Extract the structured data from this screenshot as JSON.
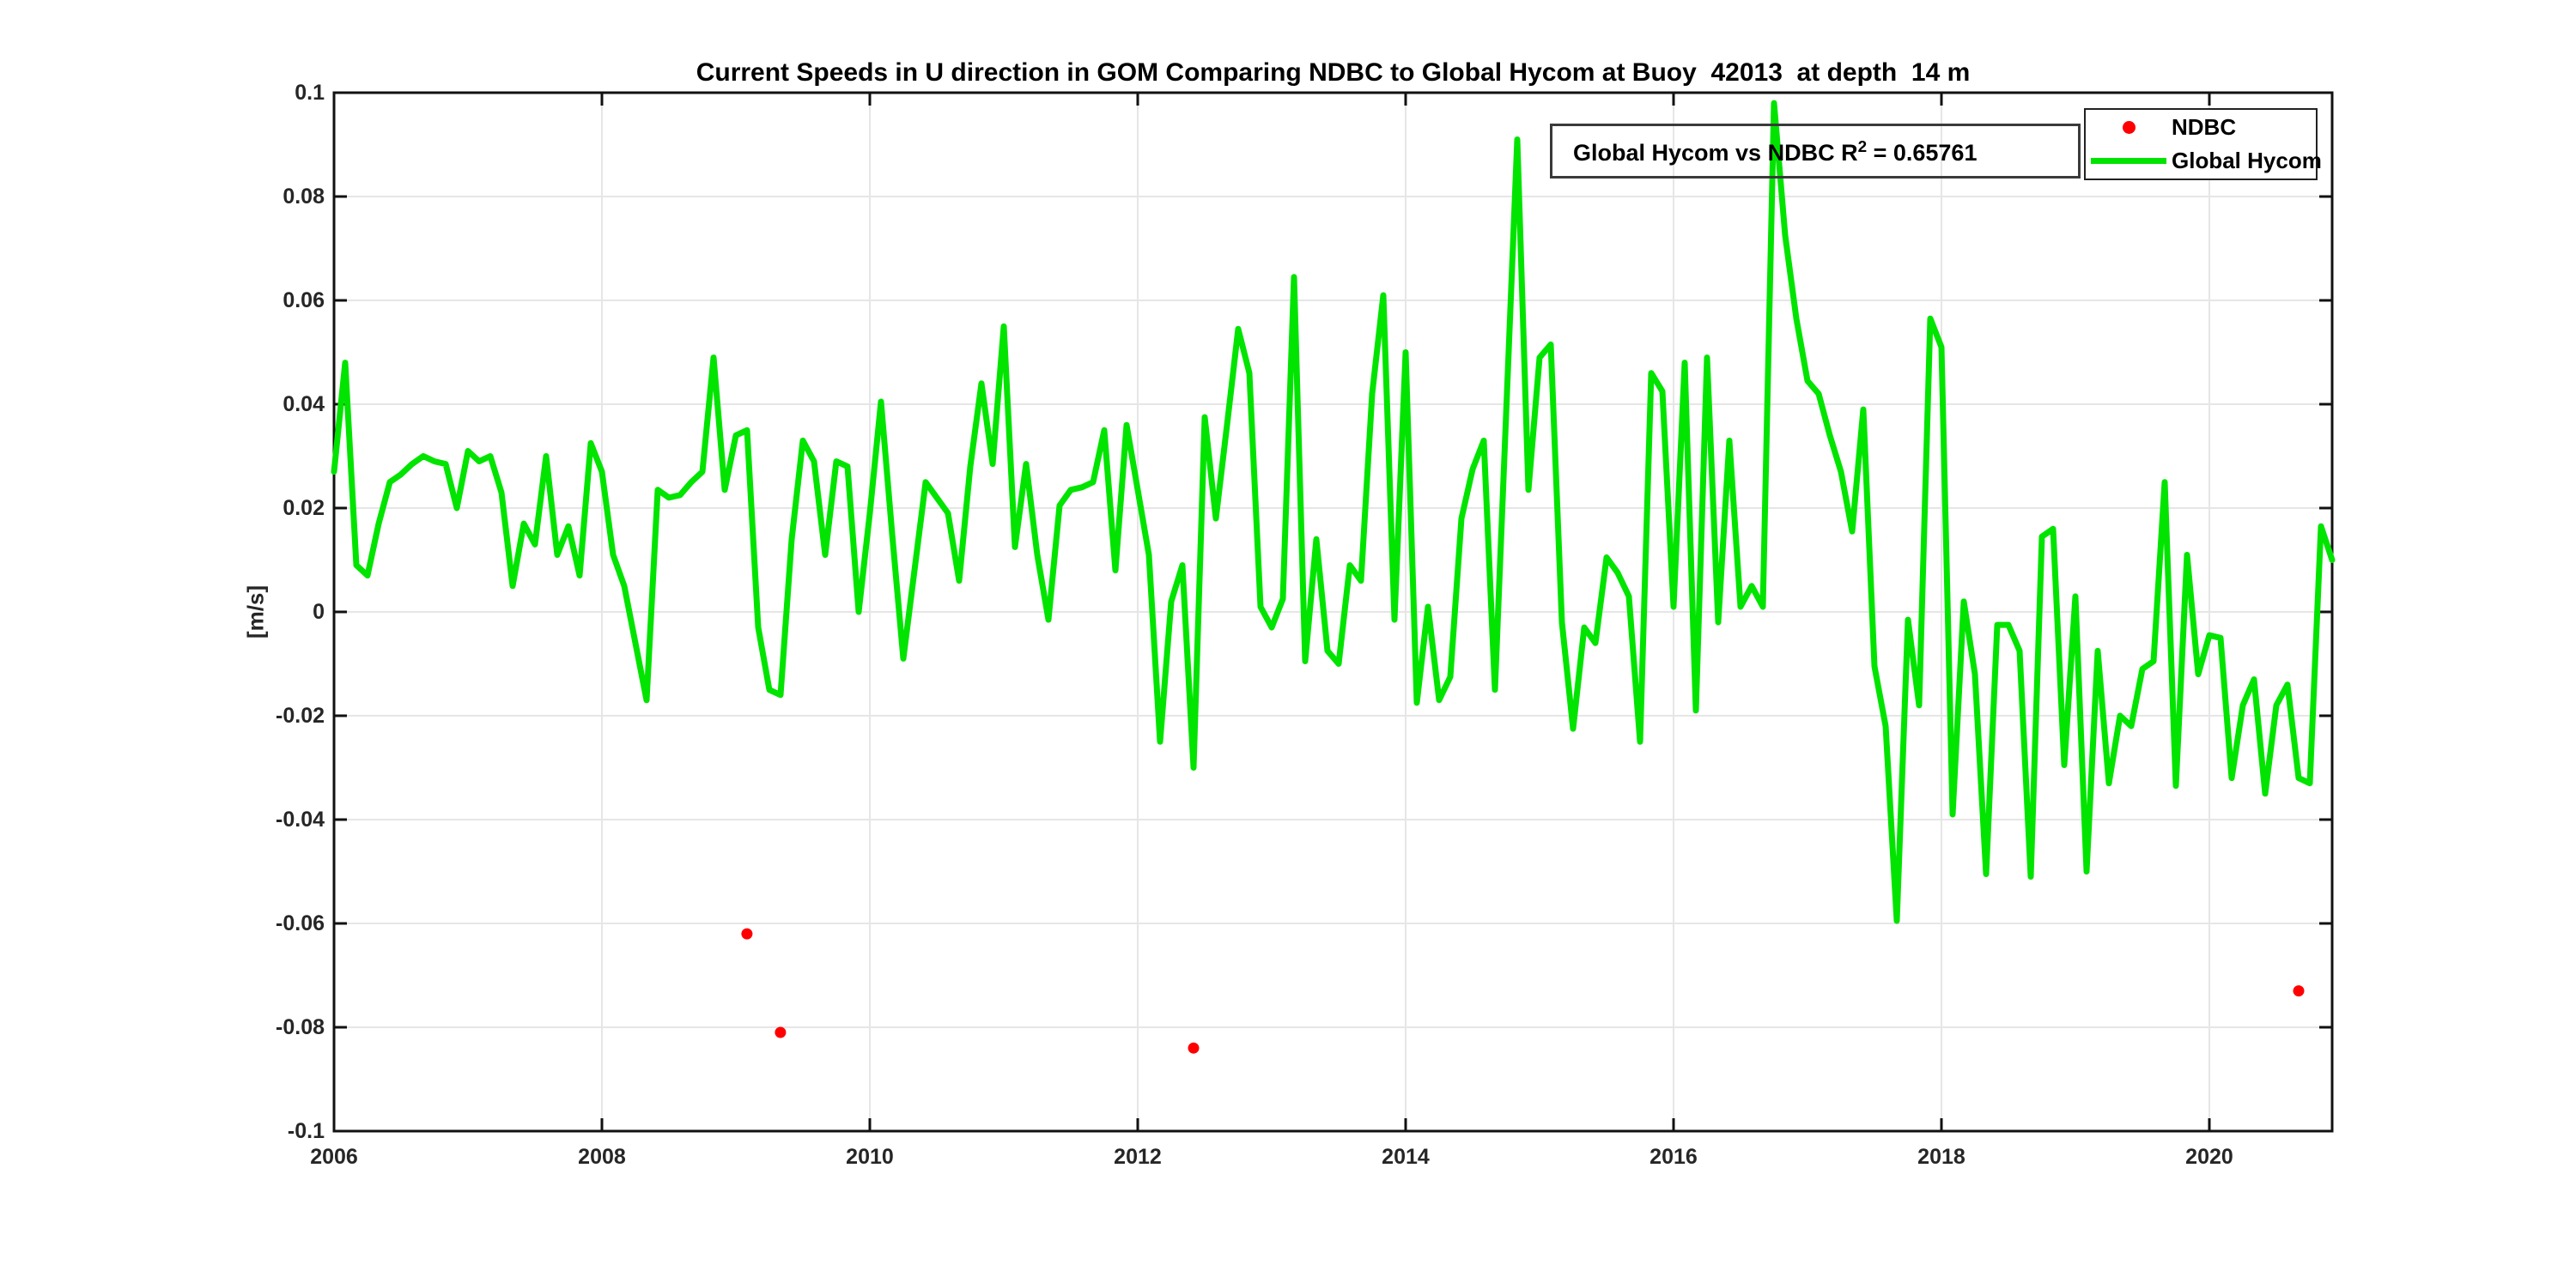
{
  "title": "Current Speeds in U direction in GOM Comparing NDBC to Global Hycom at Buoy  42013  at depth  14 m",
  "annotation": {
    "prefix": "Global Hycom vs NDBC R",
    "sup": "2",
    "suffix": " = 0.65761"
  },
  "legend": {
    "items": [
      {
        "label": "NDBC",
        "marker": "dot",
        "color": "#ff0000"
      },
      {
        "label": "Global Hycom",
        "marker": "line",
        "color": "#00e400"
      }
    ]
  },
  "colors": {
    "hycom_line": "#00e400",
    "ndbc_marker": "#ff0000",
    "grid": "#e6e6e6",
    "axis": "#111111",
    "tick_text": "#262626"
  },
  "chart_data": {
    "type": "line",
    "title": "Current Speeds in U direction in GOM Comparing NDBC to Global Hycom at Buoy  42013  at depth  14 m",
    "xlabel": "",
    "ylabel": "[m/s]",
    "xlim": [
      2006,
      2020.9167
    ],
    "ylim": [
      -0.1,
      0.1
    ],
    "grid": true,
    "legend_position": "top-right",
    "x_ticks": {
      "values": [
        2006,
        2008,
        2010,
        2012,
        2014,
        2016,
        2018,
        2020
      ],
      "labels": [
        "2006",
        "2008",
        "2010",
        "2012",
        "2014",
        "2016",
        "2018",
        "2020"
      ]
    },
    "y_ticks": {
      "values": [
        0.1,
        0.08,
        0.06,
        0.04,
        0.02,
        0,
        -0.02,
        -0.04,
        -0.06,
        -0.08,
        -0.1
      ],
      "labels": [
        "0.1",
        "0.08",
        "0.06",
        "0.04",
        "0.02",
        "0",
        "-0.02",
        "-0.04",
        "-0.06",
        "-0.08",
        "-0.1"
      ]
    },
    "series": [
      {
        "name": "Global Hycom",
        "type": "line",
        "color": "#00e400",
        "x_start": 2006.0,
        "x_step": 0.0833333,
        "values": [
          0.027,
          0.048,
          0.009,
          0.007,
          0.017,
          0.025,
          0.0265,
          0.0285,
          0.03,
          0.029,
          0.0285,
          0.02,
          0.031,
          0.029,
          0.03,
          0.023,
          0.005,
          0.017,
          0.013,
          0.03,
          0.011,
          0.0165,
          0.007,
          0.0325,
          0.027,
          0.011,
          0.005,
          -0.006,
          -0.017,
          0.0235,
          0.022,
          0.0225,
          0.025,
          0.027,
          0.049,
          0.0235,
          0.034,
          0.035,
          -0.003,
          -0.015,
          -0.016,
          0.014,
          0.033,
          0.029,
          0.011,
          0.029,
          0.028,
          0.0,
          0.019,
          0.0405,
          0.015,
          -0.009,
          0.008,
          0.025,
          0.022,
          0.019,
          0.006,
          0.028,
          0.044,
          0.0285,
          0.055,
          0.0125,
          0.0285,
          0.011,
          -0.0015,
          0.0205,
          0.0235,
          0.024,
          0.025,
          0.035,
          0.008,
          0.036,
          0.0235,
          0.011,
          -0.025,
          0.002,
          0.009,
          -0.03,
          0.0375,
          0.018,
          0.036,
          0.0545,
          0.046,
          0.001,
          -0.003,
          0.0025,
          0.0645,
          -0.0095,
          0.014,
          -0.0075,
          -0.01,
          0.009,
          0.006,
          0.042,
          0.061,
          -0.0015,
          0.05,
          -0.0175,
          0.001,
          -0.017,
          -0.0125,
          0.018,
          0.0275,
          0.033,
          -0.015,
          0.038,
          0.091,
          0.0235,
          0.049,
          0.0515,
          -0.002,
          -0.0225,
          -0.003,
          -0.006,
          0.0105,
          0.0075,
          0.003,
          -0.025,
          0.046,
          0.0425,
          0.001,
          0.048,
          -0.019,
          0.049,
          -0.002,
          0.033,
          0.001,
          0.005,
          0.001,
          0.098,
          0.0725,
          0.0565,
          0.0445,
          0.042,
          0.034,
          0.027,
          0.0155,
          0.039,
          -0.0105,
          -0.022,
          -0.0595,
          -0.0015,
          -0.018,
          0.0565,
          0.051,
          -0.039,
          0.002,
          -0.012,
          -0.0505,
          -0.0025,
          -0.0025,
          -0.0075,
          -0.051,
          0.0145,
          0.016,
          -0.0295,
          0.003,
          -0.05,
          -0.0075,
          -0.033,
          -0.02,
          -0.022,
          -0.011,
          -0.0095,
          0.025,
          -0.0335,
          0.011,
          -0.012,
          -0.0045,
          -0.005,
          -0.032,
          -0.018,
          -0.013,
          -0.035,
          -0.018,
          -0.014,
          -0.032,
          -0.033,
          0.0165,
          0.01
        ]
      },
      {
        "name": "NDBC",
        "type": "scatter",
        "color": "#ff0000",
        "points": [
          [
            2009.083,
            -0.062
          ],
          [
            2009.333,
            -0.081
          ],
          [
            2012.417,
            -0.084
          ],
          [
            2020.667,
            -0.073
          ]
        ]
      }
    ]
  }
}
